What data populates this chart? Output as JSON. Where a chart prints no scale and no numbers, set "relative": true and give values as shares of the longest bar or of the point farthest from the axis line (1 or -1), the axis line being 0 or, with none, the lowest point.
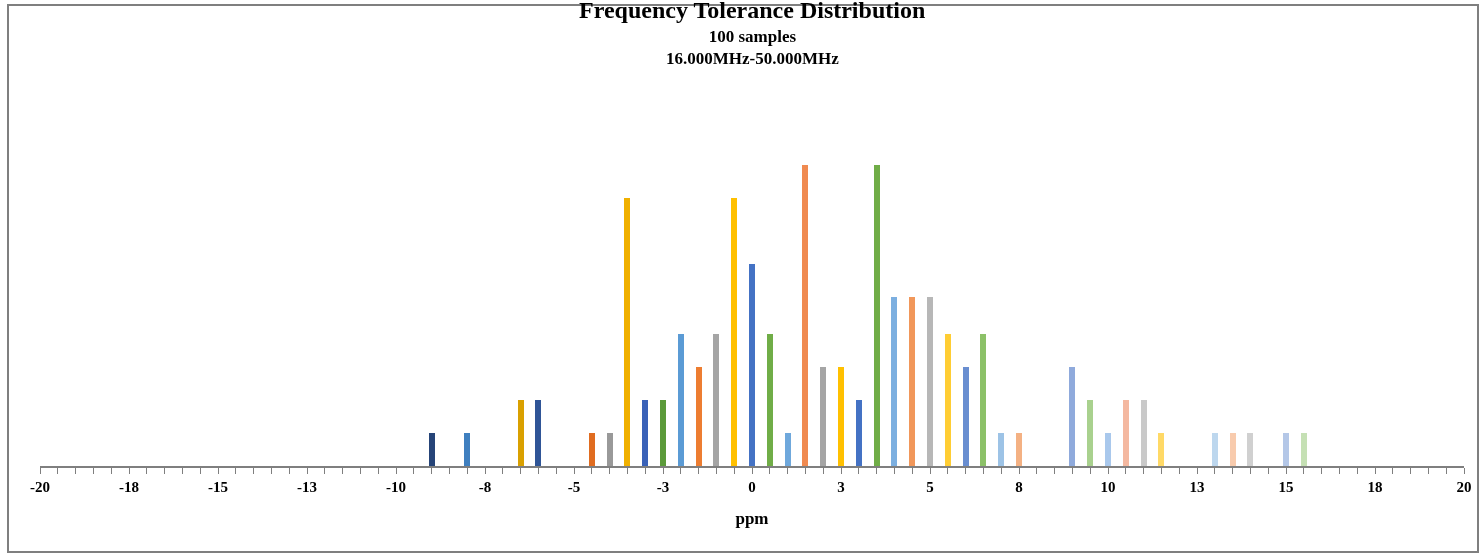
{
  "chart_data": {
    "type": "bar",
    "title": "Frequency Tolerance Distribution",
    "subtitle": "100 samples\n16.000MHz-50.000MHz",
    "xlabel": "ppm",
    "relative": true,
    "x": [
      -9,
      -8,
      -6.5,
      -6,
      -4.5,
      -4,
      -3.5,
      -3,
      -2.5,
      -2,
      -1.5,
      -1,
      -0.5,
      0,
      0.5,
      1,
      1.5,
      2,
      2.5,
      3,
      3.5,
      4,
      4.5,
      5,
      5.5,
      6,
      6.5,
      7,
      7.5,
      9,
      9.5,
      10,
      10.5,
      11,
      11.5,
      13,
      13.5,
      14,
      15,
      15.5
    ],
    "values": [
      0.11,
      0.11,
      0.22,
      0.22,
      0.11,
      0.11,
      0.89,
      0.22,
      0.22,
      0.44,
      0.33,
      0.44,
      0.89,
      0.67,
      0.44,
      0.11,
      1,
      0.33,
      0.33,
      0.22,
      1,
      0.56,
      0.56,
      0.56,
      0.44,
      0.33,
      0.44,
      0.11,
      0.11,
      0.33,
      0.22,
      0.11,
      0.22,
      0.22,
      0.11,
      0.11,
      0.11,
      0.11,
      0.11,
      0.11
    ],
    "colors": [
      "#264478",
      "#3f7fbf",
      "#d9a000",
      "#2f5597",
      "#e06c20",
      "#999999",
      "#f0b000",
      "#3a62b8",
      "#5b9a3a",
      "#5b9bd5",
      "#ed7d31",
      "#a5a5a5",
      "#ffc000",
      "#4472c4",
      "#70ad47",
      "#6fa8dc",
      "#f08a50",
      "#a5a5a5",
      "#ffc000",
      "#4472c4",
      "#70ad47",
      "#7cafe0",
      "#f1975a",
      "#b7b7b7",
      "#ffcd33",
      "#698ed0",
      "#8cc168",
      "#9dc3e6",
      "#f4b183",
      "#8faadc",
      "#a9d18e",
      "#a9c8ec",
      "#f4b8a0",
      "#c9c9c9",
      "#ffd966",
      "#bdd7ee",
      "#f8cbad",
      "#d0d0d0",
      "#b4c7e7",
      "#c5e0b4"
    ],
    "xlim": [
      -20,
      20
    ],
    "xticks": [
      -20,
      {
        "value": -19.5,
        "label": null
      },
      {
        "value": -19,
        "label": null
      },
      {
        "value": -18.5,
        "label": null
      },
      {
        "value": -18,
        "label": null
      },
      {
        "value": -17.5,
        "label": "-18"
      },
      {
        "value": -17,
        "label": null
      },
      {
        "value": -16.5,
        "label": null
      },
      {
        "value": -16,
        "label": null
      },
      {
        "value": -15.5,
        "label": null
      },
      -15,
      {
        "value": -14.5,
        "label": null
      },
      {
        "value": -14,
        "label": null
      },
      {
        "value": -13.5,
        "label": null
      },
      {
        "value": -13,
        "label": null
      },
      {
        "value": -12.5,
        "label": "-13"
      },
      {
        "value": -12,
        "label": null
      },
      {
        "value": -11.5,
        "label": null
      },
      {
        "value": -11,
        "label": null
      },
      {
        "value": -10.5,
        "label": null
      },
      -10,
      {
        "value": -9.5,
        "label": null
      },
      {
        "value": -9,
        "label": null
      },
      {
        "value": -8.5,
        "label": null
      },
      {
        "value": -8,
        "label": null
      },
      {
        "value": -7.5,
        "label": "-8"
      },
      {
        "value": -7,
        "label": null
      },
      {
        "value": -6.5,
        "label": null
      },
      {
        "value": -6,
        "label": null
      },
      {
        "value": -5.5,
        "label": null
      },
      -5,
      {
        "value": -4.5,
        "label": null
      },
      {
        "value": -4,
        "label": null
      },
      {
        "value": -3.5,
        "label": null
      },
      {
        "value": -3,
        "label": null
      },
      {
        "value": -2.5,
        "label": "-3"
      },
      {
        "value": -2,
        "label": null
      },
      {
        "value": -1.5,
        "label": null
      },
      {
        "value": -1,
        "label": null
      },
      {
        "value": -0.5,
        "label": null
      },
      0,
      {
        "value": 0.5,
        "label": null
      },
      {
        "value": 1,
        "label": null
      },
      {
        "value": 1.5,
        "label": null
      },
      {
        "value": 2,
        "label": null
      },
      {
        "value": 2.5,
        "label": "3"
      },
      {
        "value": 3,
        "label": null
      },
      {
        "value": 3.5,
        "label": null
      },
      {
        "value": 4,
        "label": null
      },
      {
        "value": 4.5,
        "label": null
      },
      5,
      {
        "value": 5.5,
        "label": null
      },
      {
        "value": 6,
        "label": null
      },
      {
        "value": 6.5,
        "label": null
      },
      {
        "value": 7,
        "label": null
      },
      {
        "value": 7.5,
        "label": "8"
      },
      {
        "value": 8,
        "label": null
      },
      {
        "value": 8.5,
        "label": null
      },
      {
        "value": 9,
        "label": null
      },
      {
        "value": 9.5,
        "label": null
      },
      10,
      {
        "value": 10.5,
        "label": null
      },
      {
        "value": 11,
        "label": null
      },
      {
        "value": 11.5,
        "label": null
      },
      {
        "value": 12,
        "label": null
      },
      {
        "value": 12.5,
        "label": "13"
      },
      {
        "value": 13,
        "label": null
      },
      {
        "value": 13.5,
        "label": null
      },
      {
        "value": 14,
        "label": null
      },
      {
        "value": 14.5,
        "label": null
      },
      15,
      {
        "value": 15.5,
        "label": null
      },
      {
        "value": 16,
        "label": null
      },
      {
        "value": 16.5,
        "label": null
      },
      {
        "value": 17,
        "label": null
      },
      {
        "value": 17.5,
        "label": "18"
      },
      {
        "value": 18,
        "label": null
      },
      {
        "value": 18.5,
        "label": null
      },
      {
        "value": 19,
        "label": null
      },
      {
        "value": 19.5,
        "label": null
      },
      20
    ]
  }
}
